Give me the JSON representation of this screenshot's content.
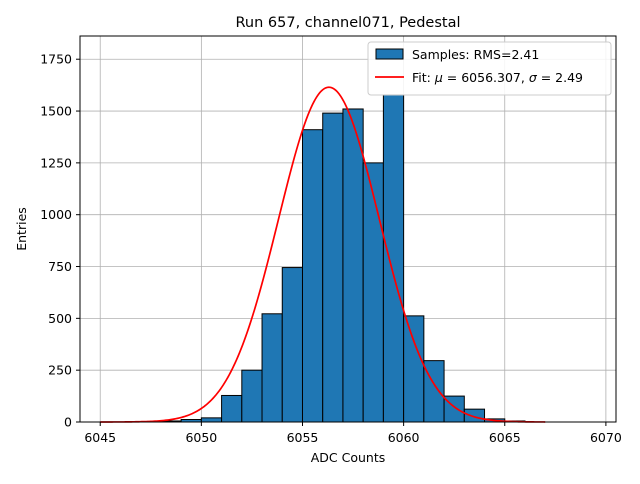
{
  "chart_data": {
    "type": "bar",
    "title": "Run 657, channel071, Pedestal",
    "xlabel": "ADC Counts",
    "ylabel": "Entries",
    "xlim": [
      6044,
      6070.5
    ],
    "ylim": [
      0,
      1862
    ],
    "xticks": [
      6045,
      6050,
      6055,
      6060,
      6065,
      6070
    ],
    "yticks": [
      0,
      250,
      500,
      750,
      1000,
      1250,
      1500,
      1750
    ],
    "grid": true,
    "legend_position": "top-right",
    "bin_width": 1,
    "bins": [
      {
        "x": 6047,
        "count": 2
      },
      {
        "x": 6048,
        "count": 5
      },
      {
        "x": 6049,
        "count": 12
      },
      {
        "x": 6050,
        "count": 20
      },
      {
        "x": 6051,
        "count": 128
      },
      {
        "x": 6052,
        "count": 250
      },
      {
        "x": 6053,
        "count": 522
      },
      {
        "x": 6054,
        "count": 745
      },
      {
        "x": 6055,
        "count": 1410
      },
      {
        "x": 6056,
        "count": 1490
      },
      {
        "x": 6057,
        "count": 1510
      },
      {
        "x": 6058,
        "count": 1250
      },
      {
        "x": 6059,
        "count": 1578
      },
      {
        "x": 6060,
        "count": 512
      },
      {
        "x": 6061,
        "count": 296
      },
      {
        "x": 6062,
        "count": 125
      },
      {
        "x": 6063,
        "count": 62
      },
      {
        "x": 6064,
        "count": 15
      },
      {
        "x": 6065,
        "count": 5
      }
    ],
    "fit": {
      "mu": 6056.307,
      "sigma": 2.49,
      "peak": 1615,
      "x_range": [
        6045,
        6067
      ]
    },
    "series": [
      {
        "name": "Samples: RMS=2.41",
        "kind": "histogram",
        "color": "#1f77b4",
        "edge_color": "#000000"
      },
      {
        "name_prefix": "Fit: ",
        "name_mu": "μ",
        "name_mid": " = 6056.307, ",
        "name_sigma": "σ",
        "name_suffix": " = 2.49",
        "kind": "line",
        "color": "#ff0000"
      }
    ]
  }
}
